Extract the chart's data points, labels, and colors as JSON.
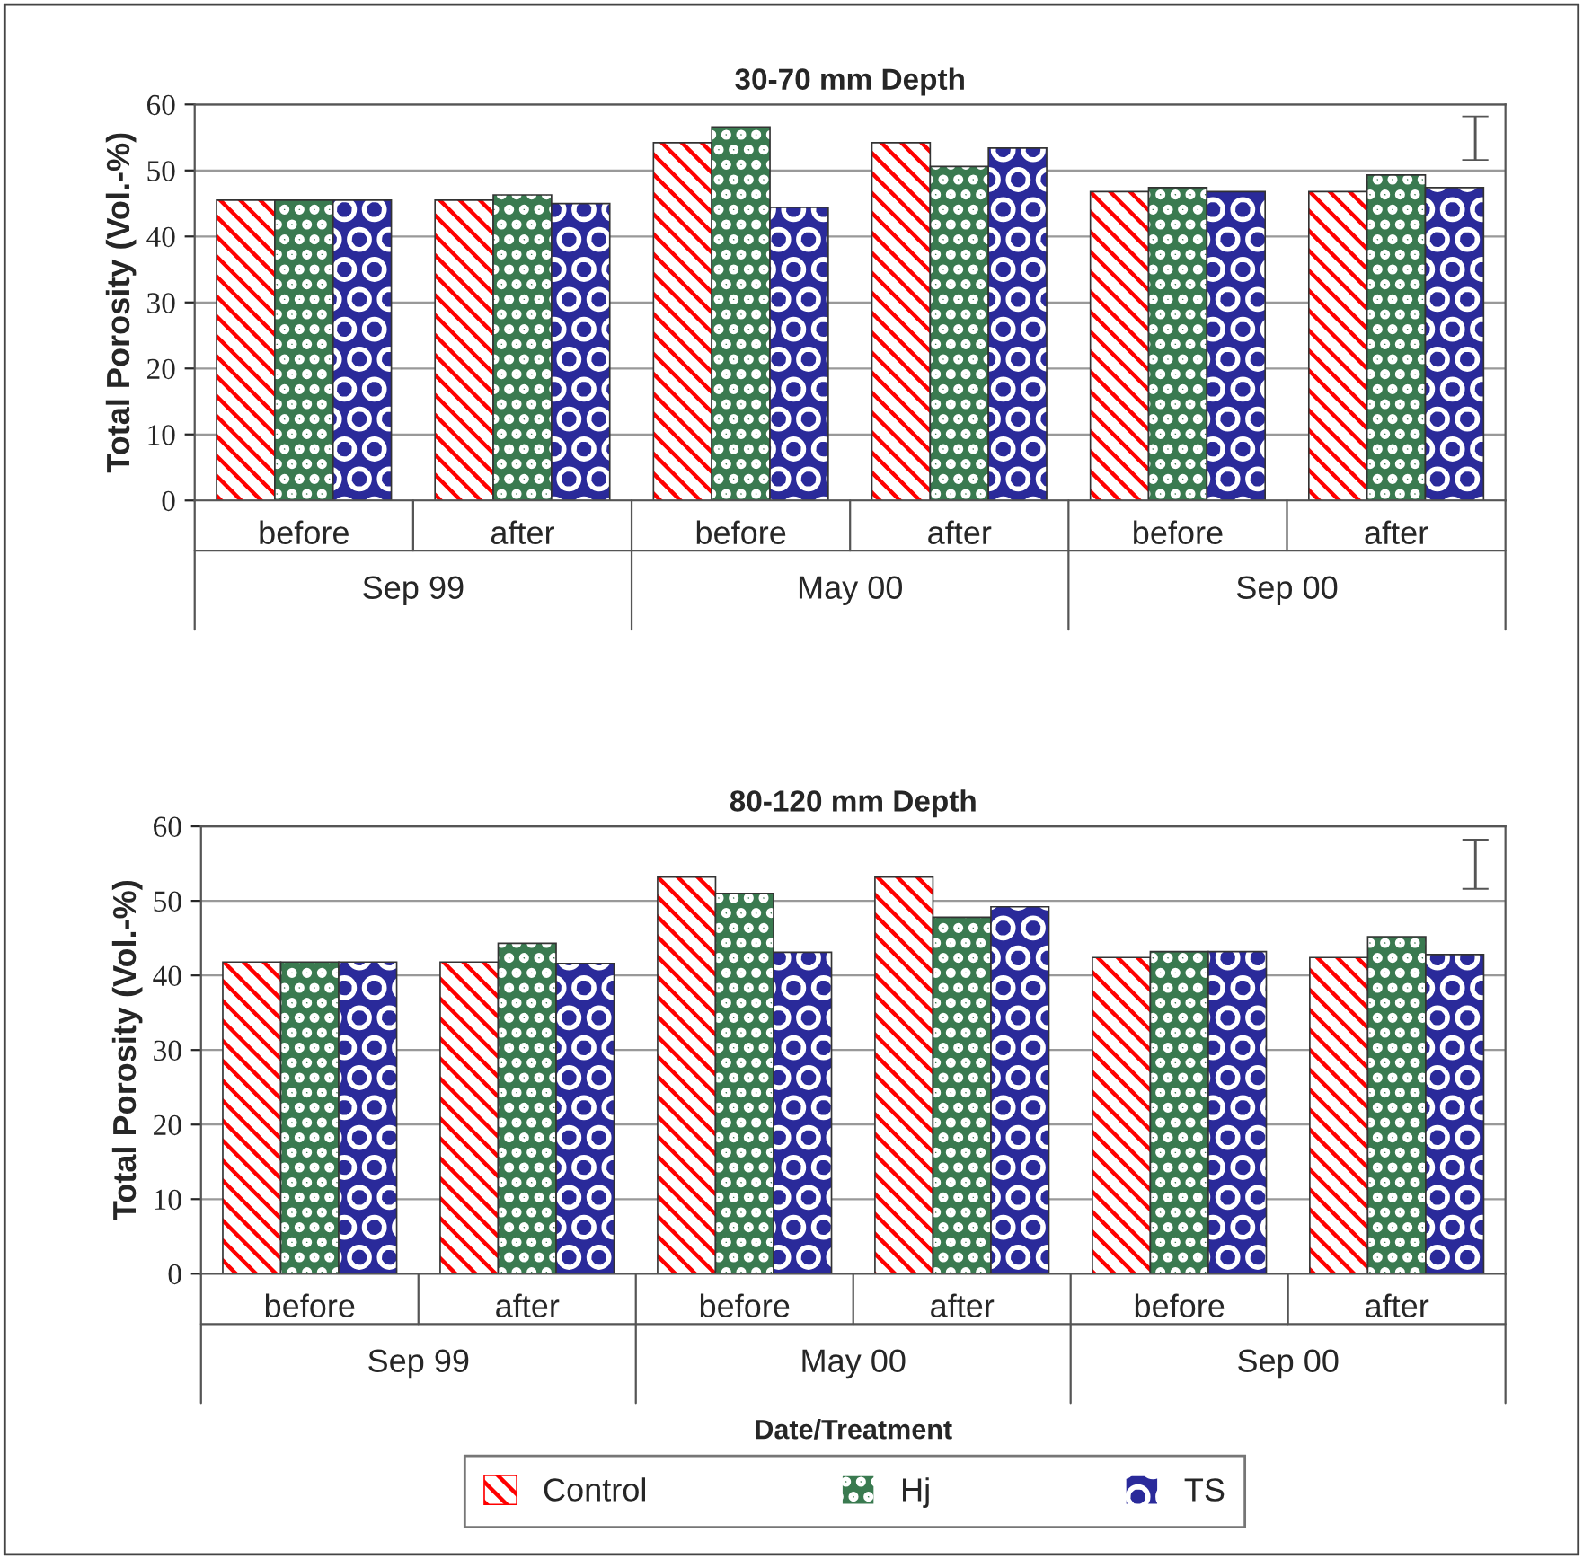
{
  "chart_data": [
    {
      "type": "bar",
      "title": "30-70 mm Depth",
      "ylabel": "Total Porosity (Vol.-%)",
      "categories": [
        "before",
        "after",
        "before",
        "after",
        "before",
        "after"
      ],
      "series": [
        {
          "color": "#ff0000",
          "values": [
            45.5,
            45.5,
            54.2,
            54.2,
            46.8,
            46.8
          ]
        },
        {
          "color": "#3a7a50",
          "values": [
            45.5,
            46.3,
            56.6,
            50.6,
            47.4,
            49.3
          ]
        },
        {
          "color": "#2a2a9a",
          "values": [
            45.5,
            45.0,
            44.4,
            53.4,
            46.8,
            47.4
          ]
        }
      ],
      "annotations": [
        "Sep 99",
        "May 00",
        "Sep 00"
      ],
      "ylim": [
        0,
        60
      ],
      "yticks": [
        0,
        10,
        20,
        30,
        40,
        50,
        60
      ],
      "grid": "y"
    },
    {
      "type": "bar",
      "title": "80-120 mm Depth",
      "ylabel": "Total Porosity (Vol.-%)",
      "xlabel": "Date/Treatment",
      "categories": [
        "before",
        "after",
        "before",
        "after",
        "before",
        "after"
      ],
      "series": [
        {
          "name": "Control",
          "color": "#ff0000",
          "values": [
            41.8,
            41.8,
            53.2,
            53.2,
            42.4,
            42.4
          ]
        },
        {
          "name": "Hj",
          "color": "#3a7a50",
          "values": [
            41.8,
            44.3,
            51.0,
            47.8,
            43.2,
            45.2
          ]
        },
        {
          "name": "TS",
          "color": "#2a2a9a",
          "values": [
            41.8,
            41.6,
            43.1,
            49.2,
            43.2,
            42.8
          ]
        }
      ],
      "annotations": [
        "Sep 99",
        "May 00",
        "Sep 00"
      ],
      "ylim": [
        0,
        60
      ],
      "yticks": [
        0,
        10,
        20,
        30,
        40,
        50,
        60
      ],
      "grid": "y",
      "legend": "bottom"
    }
  ]
}
